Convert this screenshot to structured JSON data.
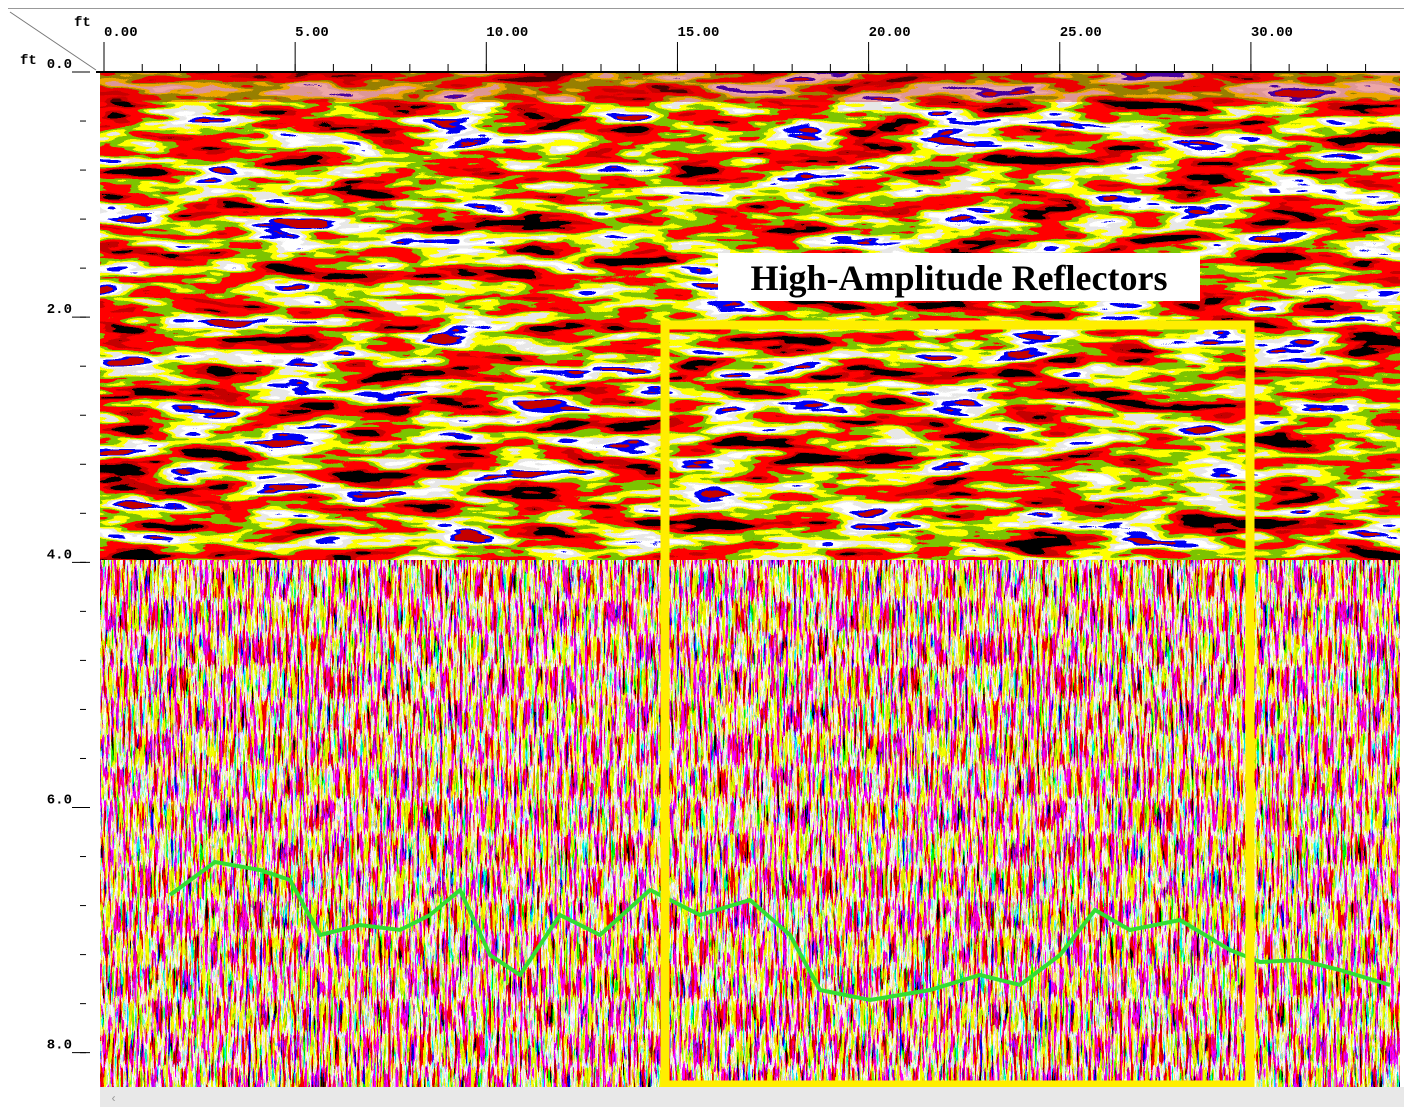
{
  "axes": {
    "x_unit": "ft",
    "y_unit": "ft",
    "xlim": [
      0,
      33.9
    ],
    "ylim": [
      0,
      8.28
    ],
    "xticks": [
      {
        "value": 0,
        "label": "0.00"
      },
      {
        "value": 5,
        "label": "5.00"
      },
      {
        "value": 10,
        "label": "10.00"
      },
      {
        "value": 15,
        "label": "15.00"
      },
      {
        "value": 20,
        "label": "20.00"
      },
      {
        "value": 25,
        "label": "25.00"
      },
      {
        "value": 30,
        "label": "30.00"
      }
    ],
    "yticks": [
      {
        "value": 0,
        "label": "0.0"
      },
      {
        "value": 2,
        "label": "2.0"
      },
      {
        "value": 4,
        "label": "4.0"
      },
      {
        "value": 6,
        "label": "6.0"
      },
      {
        "value": 8,
        "label": "8.0"
      }
    ]
  },
  "annotation": {
    "label": "High-Amplitude Reflectors"
  }
}
